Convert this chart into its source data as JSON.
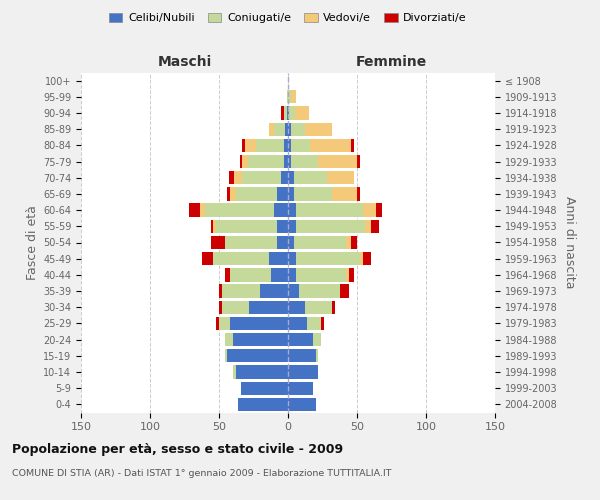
{
  "age_groups": [
    "0-4",
    "5-9",
    "10-14",
    "15-19",
    "20-24",
    "25-29",
    "30-34",
    "35-39",
    "40-44",
    "45-49",
    "50-54",
    "55-59",
    "60-64",
    "65-69",
    "70-74",
    "75-79",
    "80-84",
    "85-89",
    "90-94",
    "95-99",
    "100+"
  ],
  "birth_years": [
    "2004-2008",
    "1999-2003",
    "1994-1998",
    "1989-1993",
    "1984-1988",
    "1979-1983",
    "1974-1978",
    "1969-1973",
    "1964-1968",
    "1959-1963",
    "1954-1958",
    "1949-1953",
    "1944-1948",
    "1939-1943",
    "1934-1938",
    "1929-1933",
    "1924-1928",
    "1919-1923",
    "1914-1918",
    "1909-1913",
    "≤ 1908"
  ],
  "maschi": {
    "celibi": [
      36,
      34,
      38,
      44,
      40,
      42,
      28,
      20,
      12,
      14,
      8,
      8,
      10,
      8,
      5,
      3,
      3,
      2,
      1,
      0,
      0
    ],
    "coniugati": [
      0,
      0,
      2,
      2,
      6,
      8,
      20,
      28,
      30,
      40,
      38,
      44,
      50,
      30,
      28,
      26,
      20,
      8,
      2,
      1,
      0
    ],
    "vedovi": [
      0,
      0,
      0,
      0,
      0,
      0,
      0,
      0,
      0,
      0,
      0,
      2,
      4,
      4,
      6,
      4,
      8,
      4,
      0,
      0,
      0
    ],
    "divorziati": [
      0,
      0,
      0,
      0,
      0,
      2,
      2,
      2,
      4,
      8,
      10,
      2,
      8,
      2,
      4,
      2,
      2,
      0,
      2,
      0,
      0
    ]
  },
  "femmine": {
    "nubili": [
      20,
      18,
      22,
      20,
      18,
      14,
      12,
      8,
      6,
      6,
      4,
      6,
      6,
      4,
      4,
      2,
      2,
      2,
      1,
      0,
      0
    ],
    "coniugate": [
      0,
      0,
      0,
      2,
      6,
      10,
      20,
      30,
      36,
      46,
      38,
      50,
      48,
      28,
      24,
      20,
      14,
      10,
      4,
      2,
      0
    ],
    "vedove": [
      0,
      0,
      0,
      0,
      0,
      0,
      0,
      0,
      2,
      2,
      4,
      4,
      10,
      18,
      20,
      28,
      30,
      20,
      10,
      4,
      0
    ],
    "divorziate": [
      0,
      0,
      0,
      0,
      0,
      2,
      2,
      6,
      4,
      6,
      4,
      6,
      4,
      2,
      0,
      2,
      2,
      0,
      0,
      0,
      0
    ]
  },
  "colors": {
    "celibi_nubili": "#4472C4",
    "coniugati": "#C5D99A",
    "vedovi": "#F5C97A",
    "divorziati": "#CC0000"
  },
  "xlim": 150,
  "title": "Popolazione per età, sesso e stato civile - 2009",
  "subtitle": "COMUNE DI STIA (AR) - Dati ISTAT 1° gennaio 2009 - Elaborazione TUTTITALIA.IT",
  "ylabel_left": "Fasce di età",
  "ylabel_right": "Anni di nascita",
  "xlabel_maschi": "Maschi",
  "xlabel_femmine": "Femmine",
  "legend_labels": [
    "Celibi/Nubili",
    "Coniugati/e",
    "Vedovi/e",
    "Divorziati/e"
  ],
  "bg_color": "#f0f0f0",
  "plot_bg_color": "#ffffff"
}
